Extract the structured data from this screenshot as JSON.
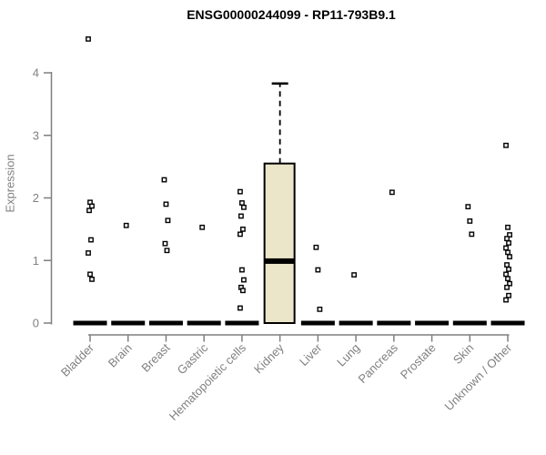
{
  "chart_data": {
    "type": "boxplot",
    "title": "ENSG00000244099 - RP11-793B9.1",
    "xlabel": "",
    "ylabel": "Expression",
    "ylim": [
      0,
      4
    ],
    "y_ticks": [
      0,
      1,
      2,
      3,
      4
    ],
    "grid": false,
    "categories": [
      "Bladder",
      "Brain",
      "Breast",
      "Gastric",
      "Hematopoietic cells",
      "Kidney",
      "Liver",
      "Lung",
      "Pancreas",
      "Prostate",
      "Skin",
      "Unknown / Other"
    ],
    "boxes": [
      {
        "category": "Bladder",
        "median": 0,
        "q1": 0,
        "q3": 0,
        "whisker_low": 0,
        "whisker_high": 0,
        "points": [
          4.54,
          1.93,
          1.87,
          1.8,
          1.33,
          1.12,
          0.78,
          0.7
        ]
      },
      {
        "category": "Brain",
        "median": 0,
        "q1": 0,
        "q3": 0,
        "whisker_low": 0,
        "whisker_high": 0,
        "points": [
          1.56
        ]
      },
      {
        "category": "Breast",
        "median": 0,
        "q1": 0,
        "q3": 0,
        "whisker_low": 0,
        "whisker_high": 0,
        "points": [
          2.29,
          1.9,
          1.64,
          1.27,
          1.16
        ]
      },
      {
        "category": "Gastric",
        "median": 0,
        "q1": 0,
        "q3": 0,
        "whisker_low": 0,
        "whisker_high": 0,
        "points": [
          1.53
        ]
      },
      {
        "category": "Hematopoietic cells",
        "median": 0,
        "q1": 0,
        "q3": 0,
        "whisker_low": 0,
        "whisker_high": 0,
        "points": [
          2.1,
          1.92,
          1.85,
          1.71,
          1.5,
          1.42,
          0.85,
          0.69,
          0.57,
          0.52,
          0.24
        ]
      },
      {
        "category": "Kidney",
        "median": 0.99,
        "q1": 0,
        "q3": 2.55,
        "whisker_low": 0,
        "whisker_high": 3.83,
        "points": []
      },
      {
        "category": "Liver",
        "median": 0,
        "q1": 0,
        "q3": 0,
        "whisker_low": 0,
        "whisker_high": 0,
        "points": [
          1.21,
          0.85,
          0.22
        ]
      },
      {
        "category": "Lung",
        "median": 0,
        "q1": 0,
        "q3": 0,
        "whisker_low": 0,
        "whisker_high": 0,
        "points": [
          0.77
        ]
      },
      {
        "category": "Pancreas",
        "median": 0,
        "q1": 0,
        "q3": 0,
        "whisker_low": 0,
        "whisker_high": 0,
        "points": [
          2.09
        ]
      },
      {
        "category": "Prostate",
        "median": 0,
        "q1": 0,
        "q3": 0,
        "whisker_low": 0,
        "whisker_high": 0,
        "points": []
      },
      {
        "category": "Skin",
        "median": 0,
        "q1": 0,
        "q3": 0,
        "whisker_low": 0,
        "whisker_high": 0,
        "points": [
          1.86,
          1.63,
          1.42
        ]
      },
      {
        "category": "Unknown / Other",
        "median": 0,
        "q1": 0,
        "q3": 0,
        "whisker_low": 0,
        "whisker_high": 0,
        "points": [
          2.84,
          1.53,
          1.41,
          1.35,
          1.28,
          1.2,
          1.13,
          1.06,
          0.93,
          0.86,
          0.78,
          0.71,
          0.63,
          0.57,
          0.44,
          0.37
        ]
      }
    ],
    "style": {
      "box_fill": "#EBE5C9",
      "box_stroke": "#000000",
      "median_color": "#000000",
      "point_color": "#000000",
      "point_fill": "#FFFFFF",
      "axis_color": "#7F7F7F",
      "tick_label_color": "#808080",
      "title_color": "#000000",
      "background": "#FFFFFF"
    },
    "legend": null
  }
}
